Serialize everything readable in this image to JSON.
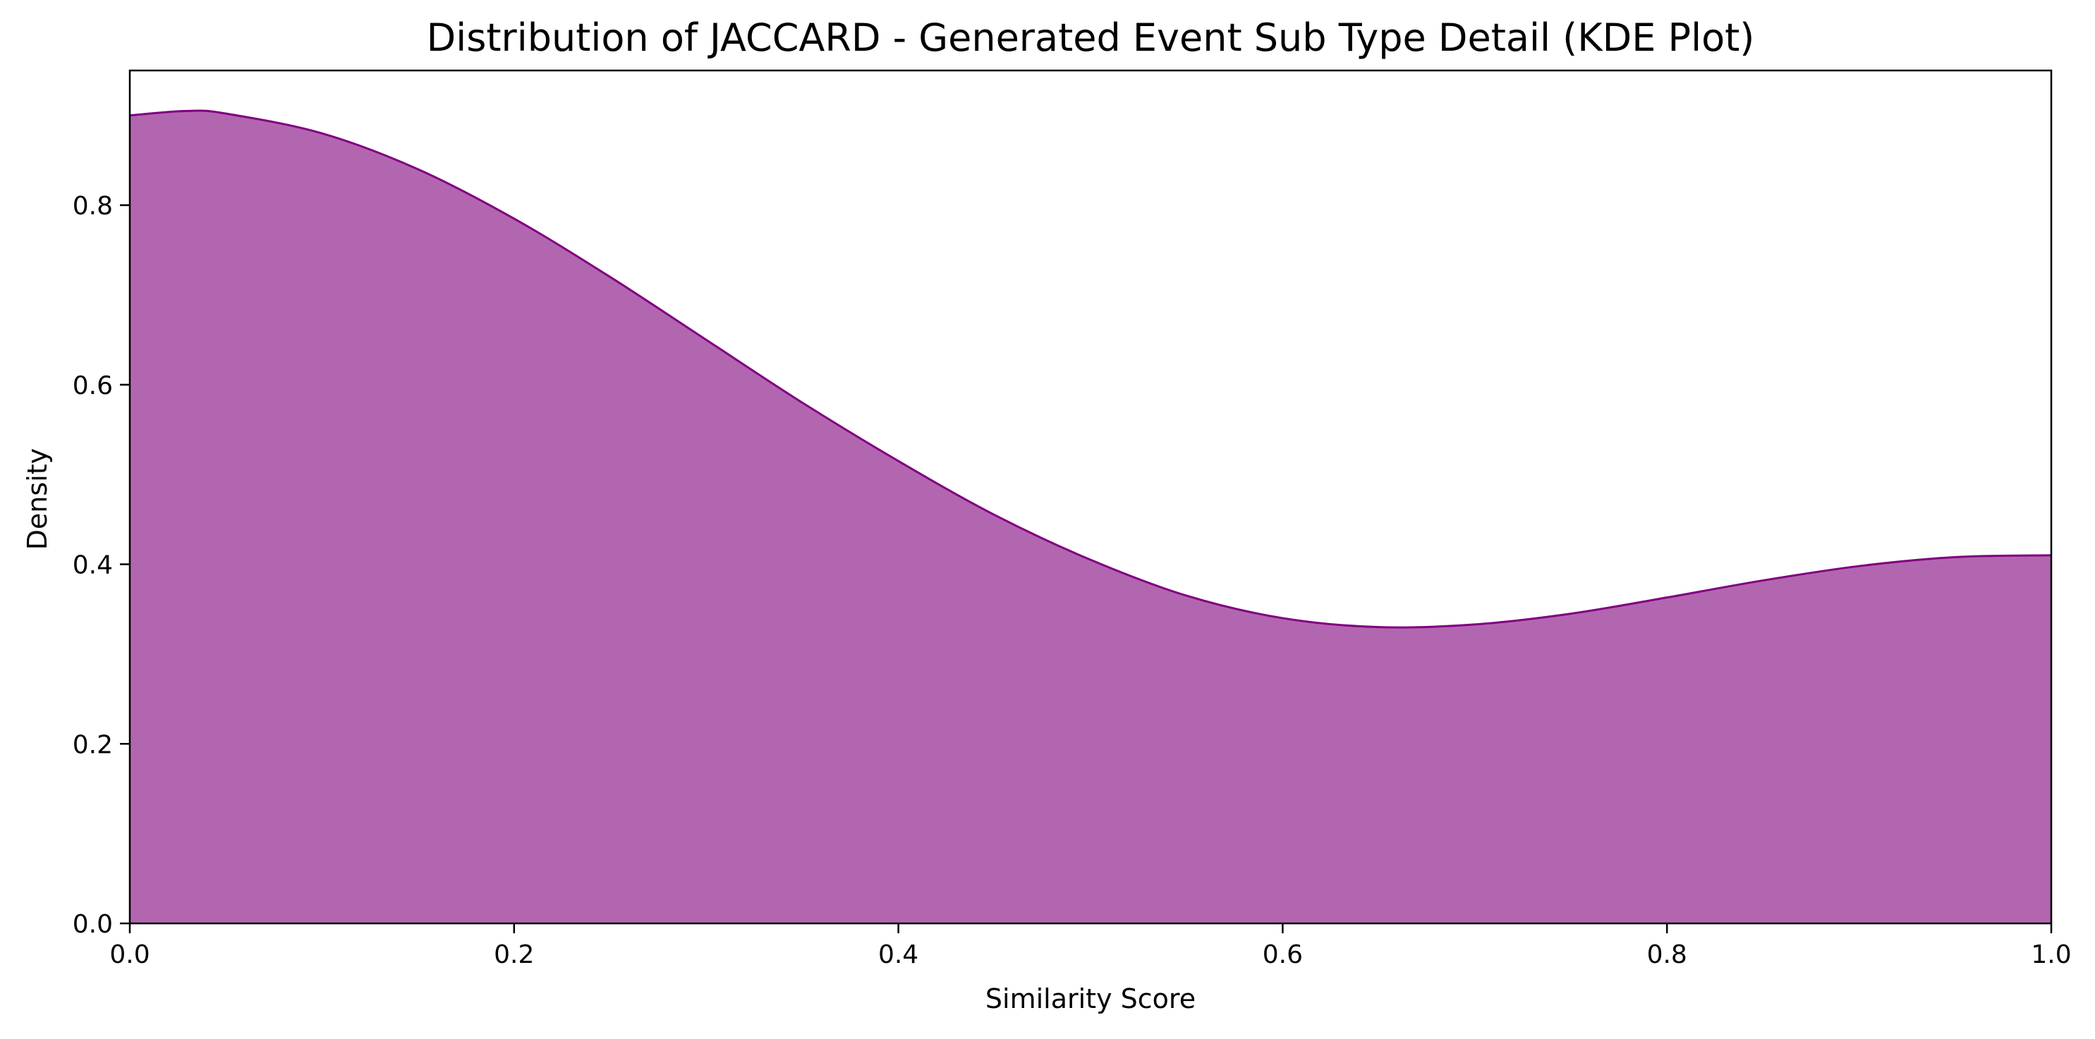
{
  "chart_data": {
    "type": "area",
    "title": "Distribution of JACCARD - Generated Event Sub Type Detail (KDE Plot)",
    "xlabel": "Similarity Score",
    "ylabel": "Density",
    "xlim": [
      0.0,
      1.0
    ],
    "ylim": [
      0.0,
      0.95
    ],
    "xticks": [
      {
        "value": 0.0,
        "label": "0.0"
      },
      {
        "value": 0.2,
        "label": "0.2"
      },
      {
        "value": 0.4,
        "label": "0.4"
      },
      {
        "value": 0.6,
        "label": "0.6"
      },
      {
        "value": 0.8,
        "label": "0.8"
      },
      {
        "value": 1.0,
        "label": "1.0"
      }
    ],
    "yticks": [
      {
        "value": 0.0,
        "label": "0.0"
      },
      {
        "value": 0.2,
        "label": "0.2"
      },
      {
        "value": 0.4,
        "label": "0.4"
      },
      {
        "value": 0.6,
        "label": "0.6"
      },
      {
        "value": 0.8,
        "label": "0.8"
      }
    ],
    "grid": false,
    "legend": "none",
    "series": [
      {
        "fill_color": "#b366b0",
        "line_color": "#800080",
        "x": [
          0.0,
          0.03,
          0.05,
          0.1,
          0.15,
          0.2,
          0.25,
          0.3,
          0.35,
          0.4,
          0.45,
          0.5,
          0.55,
          0.6,
          0.65,
          0.7,
          0.75,
          0.8,
          0.85,
          0.9,
          0.95,
          1.0
        ],
        "y": [
          0.9,
          0.905,
          0.902,
          0.88,
          0.84,
          0.785,
          0.72,
          0.65,
          0.58,
          0.515,
          0.455,
          0.405,
          0.365,
          0.34,
          0.33,
          0.333,
          0.345,
          0.363,
          0.382,
          0.398,
          0.408,
          0.41
        ]
      }
    ]
  }
}
